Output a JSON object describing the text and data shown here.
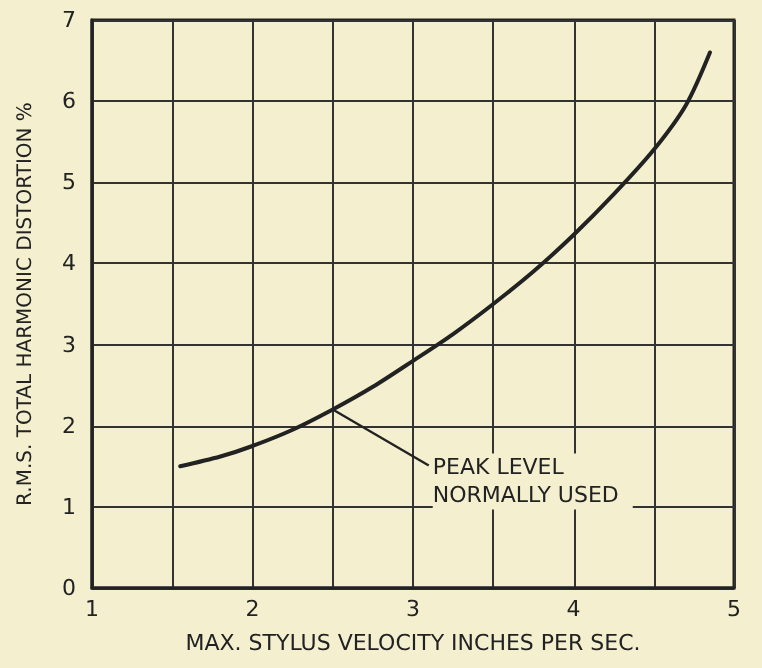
{
  "chart_data": {
    "type": "line",
    "xlabel": "MAX. STYLUS VELOCITY INCHES PER SEC.",
    "ylabel": "R.M.S. TOTAL HARMONIC DISTORTION %",
    "x": [
      1.55,
      1.8,
      2,
      2.25,
      2.5,
      2.75,
      3,
      3.25,
      3.5,
      3.75,
      4,
      4.25,
      4.5,
      4.7,
      4.85
    ],
    "series": [
      {
        "color": "#222222",
        "values": [
          1.5,
          1.62,
          1.75,
          1.95,
          2.2,
          2.48,
          2.8,
          3.13,
          3.5,
          3.9,
          4.35,
          4.85,
          5.4,
          5.95,
          6.6
        ]
      }
    ],
    "xlim": [
      1,
      5
    ],
    "xticks": [
      1,
      {
        "value": 1.5,
        "label": null
      },
      2,
      {
        "value": 2.5,
        "label": null
      },
      3,
      {
        "value": 3.5,
        "label": null
      },
      4,
      {
        "value": 4.5,
        "label": null
      },
      5
    ],
    "ylim": [
      0,
      7
    ],
    "yticks": [
      0,
      1,
      2,
      3,
      4,
      5,
      6,
      7
    ],
    "grid": true,
    "marker": "none",
    "line_style": "solid",
    "annotations": [
      {
        "text": "PEAK LEVEL NORMALLY USED",
        "x": 2.5,
        "y": 2.2
      }
    ]
  }
}
